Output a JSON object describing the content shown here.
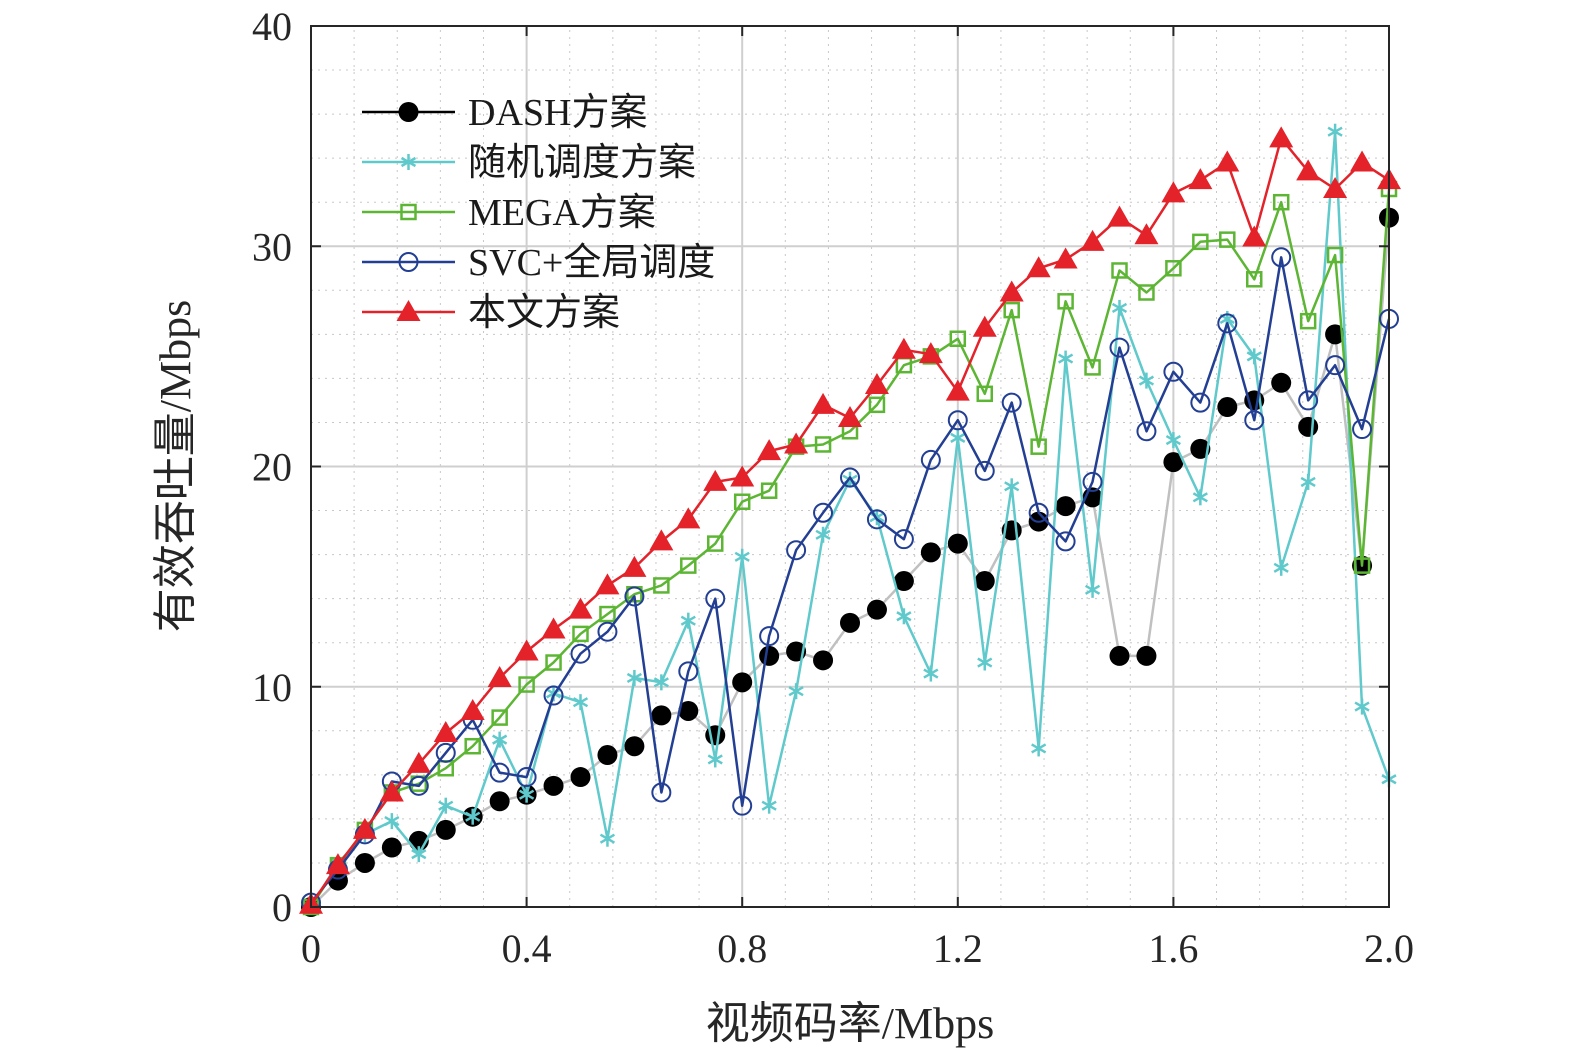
{
  "chart_data": {
    "type": "line",
    "title": "",
    "xlabel": "视频码率/Mbps",
    "ylabel": "有效吞吐量/Mbps",
    "xlim": [
      0,
      2.0
    ],
    "ylim": [
      0,
      40
    ],
    "xticks": [
      0,
      0.4,
      0.8,
      1.2,
      1.6,
      2.0
    ],
    "xtick_labels": [
      "0",
      "0.4",
      "0.8",
      "1.2",
      "1.6",
      "2.0"
    ],
    "yticks": [
      0,
      10,
      20,
      30,
      40
    ],
    "ytick_labels": [
      "0",
      "10",
      "20",
      "30",
      "40"
    ],
    "grid": true,
    "legend_position": "top-left",
    "x": [
      0,
      0.05,
      0.1,
      0.15,
      0.2,
      0.25,
      0.3,
      0.35,
      0.4,
      0.45,
      0.5,
      0.55,
      0.6,
      0.65,
      0.7,
      0.75,
      0.8,
      0.85,
      0.9,
      0.95,
      1.0,
      1.05,
      1.1,
      1.15,
      1.2,
      1.25,
      1.3,
      1.35,
      1.4,
      1.45,
      1.5,
      1.55,
      1.6,
      1.65,
      1.7,
      1.75,
      1.8,
      1.85,
      1.9,
      1.95,
      2.0
    ],
    "series": [
      {
        "name": "DASH方案",
        "color": "#000000",
        "line_color": "#c0c0c0",
        "marker": "filled-circle",
        "values": [
          0,
          1.2,
          2.0,
          2.7,
          3.0,
          3.5,
          4.1,
          4.8,
          5.1,
          5.5,
          5.9,
          6.9,
          7.3,
          8.7,
          8.9,
          7.8,
          10.2,
          11.4,
          11.6,
          11.2,
          12.9,
          13.5,
          14.8,
          16.1,
          16.5,
          14.8,
          17.1,
          17.5,
          18.2,
          18.6,
          11.4,
          11.4,
          20.2,
          20.8,
          22.7,
          23.0,
          23.8,
          21.8,
          26.0,
          15.5,
          31.3
        ]
      },
      {
        "name": "随机调度方案",
        "color": "#5fc9cb",
        "marker": "asterisk",
        "values": [
          0,
          2.0,
          3.3,
          3.9,
          2.4,
          4.6,
          4.1,
          7.6,
          5.1,
          9.7,
          9.3,
          3.1,
          10.4,
          10.2,
          13.0,
          6.7,
          15.9,
          4.6,
          9.8,
          16.9,
          19.4,
          17.7,
          13.2,
          10.6,
          21.3,
          11.1,
          19.1,
          7.2,
          24.9,
          14.4,
          27.2,
          23.9,
          21.2,
          18.6,
          26.7,
          25.0,
          15.4,
          19.3,
          35.2,
          9.1,
          5.8
        ]
      },
      {
        "name": "MEGA方案",
        "color": "#5db534",
        "marker": "open-square",
        "values": [
          0,
          1.9,
          3.5,
          5.2,
          5.6,
          6.3,
          7.3,
          8.6,
          10.1,
          11.1,
          12.4,
          13.3,
          14.2,
          14.6,
          15.5,
          16.5,
          18.4,
          18.9,
          20.9,
          21.0,
          21.6,
          22.8,
          24.6,
          25.0,
          25.8,
          23.3,
          27.1,
          20.9,
          27.5,
          24.5,
          28.9,
          27.9,
          29.0,
          30.2,
          30.3,
          28.5,
          32.0,
          26.6,
          29.6,
          15.5,
          32.6
        ]
      },
      {
        "name": "SVC+全局调度",
        "color": "#233f93",
        "marker": "open-circle",
        "values": [
          0.2,
          1.7,
          3.3,
          5.7,
          5.5,
          7.0,
          8.5,
          6.1,
          5.9,
          9.6,
          11.5,
          12.5,
          14.1,
          5.2,
          10.7,
          14.0,
          4.6,
          12.3,
          16.2,
          17.9,
          19.5,
          17.6,
          16.7,
          20.3,
          22.1,
          19.8,
          22.9,
          17.9,
          16.6,
          19.3,
          25.4,
          21.6,
          24.3,
          22.9,
          26.5,
          22.1,
          29.5,
          23.0,
          24.6,
          21.7,
          26.7
        ]
      },
      {
        "name": "本文方案",
        "color": "#e3222a",
        "marker": "filled-triangle",
        "values": [
          0.1,
          1.9,
          3.5,
          5.2,
          6.5,
          7.9,
          8.9,
          10.4,
          11.6,
          12.6,
          13.5,
          14.6,
          15.4,
          16.6,
          17.6,
          19.3,
          19.5,
          20.7,
          21.0,
          22.8,
          22.2,
          23.7,
          25.3,
          25.1,
          23.4,
          26.3,
          27.9,
          29.0,
          29.4,
          30.2,
          31.3,
          30.5,
          32.4,
          33.0,
          33.8,
          30.4,
          34.9,
          33.4,
          32.6,
          33.8,
          33.0
        ]
      }
    ]
  }
}
